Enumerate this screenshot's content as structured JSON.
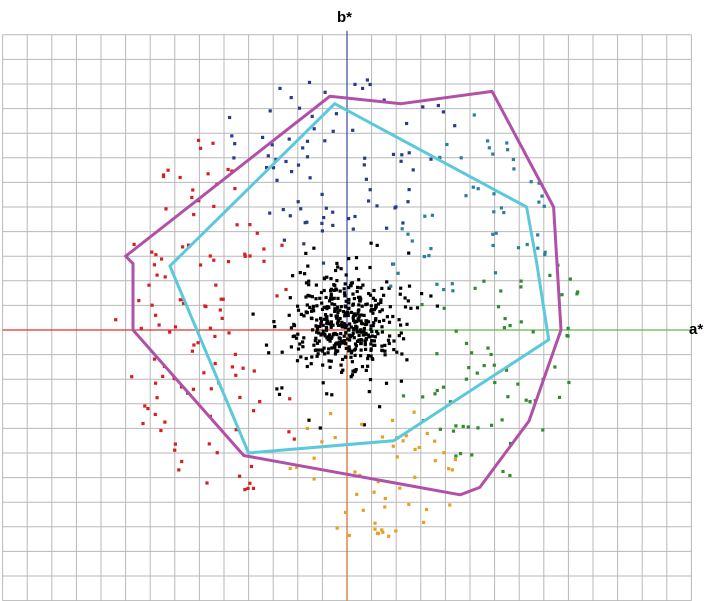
{
  "chart_data": {
    "type": "scatter",
    "title": "",
    "xlabel": "a*",
    "ylabel": "b*",
    "xlim": [
      -14,
      14
    ],
    "ylim": [
      -11,
      12
    ],
    "grid": true,
    "grid_step": 1,
    "gamut_outer": {
      "color": "#b050a8",
      "points": [
        [
          -9,
          3
        ],
        [
          -0.7,
          9.5
        ],
        [
          2.2,
          9.2
        ],
        [
          5.9,
          9.7
        ],
        [
          8.4,
          5
        ],
        [
          8.7,
          0
        ],
        [
          7.4,
          -3.7
        ],
        [
          5.4,
          -6.4
        ],
        [
          4.6,
          -6.7
        ],
        [
          -4.2,
          -5.1
        ],
        [
          -8.7,
          0
        ],
        [
          -8.7,
          2.7
        ]
      ]
    },
    "gamut_inner": {
      "color": "#5cc8dc",
      "points": [
        [
          -7.2,
          2.6
        ],
        [
          -0.5,
          9.2
        ],
        [
          7.3,
          5
        ],
        [
          7.7,
          2.8
        ],
        [
          8.2,
          -0.4
        ],
        [
          1.9,
          -4.5
        ],
        [
          -4,
          -5
        ]
      ]
    },
    "axis_colors": {
      "a_pos": "#66b844",
      "a_neg": "#e03030",
      "b_pos": "#3a4aa0",
      "b_neg": "#d06a20"
    },
    "point_colors": {
      "neutral": "#000000",
      "red": "#d81e1e",
      "blue": "#2a3b8c",
      "cyan": "#2a7ea0",
      "green": "#2f8c2f",
      "orange": "#e8a020"
    }
  }
}
